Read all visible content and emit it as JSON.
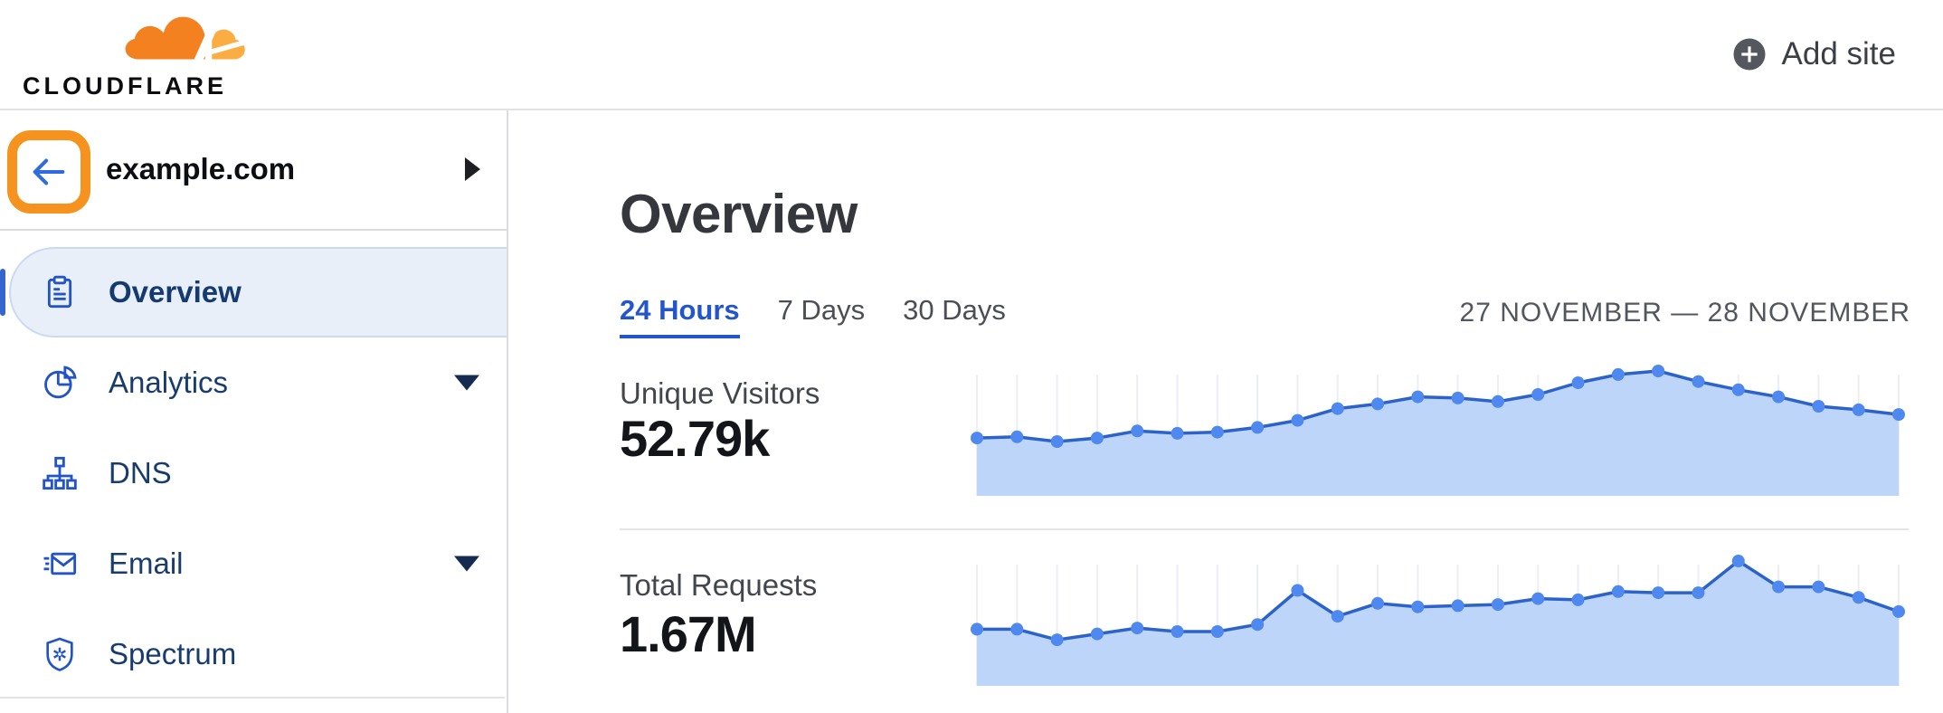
{
  "header": {
    "logo_text": "CLOUDFLARE",
    "logo_icon": "cloudflare-cloud-icon",
    "add_site_label": "Add site",
    "add_site_icon": "plus-circle-icon"
  },
  "sidebar": {
    "site": "example.com",
    "back_icon": "arrow-left-icon",
    "expand_icon": "chevron-right-icon",
    "annotation": {
      "type": "highlight-box",
      "target": "back-button",
      "color": "#f6921e"
    },
    "items": [
      {
        "label": "Overview",
        "icon": "clipboard",
        "selected": true,
        "expandable": false
      },
      {
        "label": "Analytics",
        "icon": "pie-chart",
        "selected": false,
        "expandable": true
      },
      {
        "label": "DNS",
        "icon": "network-nodes",
        "selected": false,
        "expandable": false
      },
      {
        "label": "Email",
        "icon": "email",
        "selected": false,
        "expandable": true
      },
      {
        "label": "Spectrum",
        "icon": "shield-spectrum",
        "selected": false,
        "expandable": false
      }
    ]
  },
  "main": {
    "title": "Overview",
    "tabs": [
      {
        "label": "24 Hours",
        "active": true
      },
      {
        "label": "7 Days",
        "active": false
      },
      {
        "label": "30 Days",
        "active": false
      }
    ],
    "date_range": "27 NOVEMBER — 28 NOVEMBER",
    "metrics": [
      {
        "label": "Unique Visitors",
        "value": "52.79k"
      },
      {
        "label": "Total Requests",
        "value": "1.67M"
      }
    ]
  },
  "chart_data": [
    {
      "type": "area",
      "title": "Unique Visitors",
      "summary_value": "52.79k",
      "x": "24 hourly points, 27 November — 28 November (axis unlabeled)",
      "x_count": 24,
      "ylabel": "relative value (% of peak, axis unlabeled)",
      "ylim": [
        0,
        100
      ],
      "grid": "vertical gridline at each point",
      "legend": "none",
      "values": [
        43,
        44,
        40,
        43,
        49,
        47,
        48,
        52,
        58,
        68,
        72,
        78,
        77,
        74,
        80,
        90,
        97,
        100,
        91,
        84,
        78,
        70,
        67,
        63
      ]
    },
    {
      "type": "area",
      "title": "Total Requests",
      "summary_value": "1.67M",
      "x": "24 hourly points, 27 November — 28 November (axis unlabeled)",
      "x_count": 24,
      "ylabel": "relative value (% of peak, axis unlabeled)",
      "ylim": [
        0,
        100
      ],
      "grid": "vertical gridline at each point",
      "legend": "none",
      "values": [
        42,
        42,
        33,
        38,
        43,
        40,
        40,
        46,
        75,
        53,
        64,
        61,
        62,
        63,
        68,
        67,
        74,
        73,
        73,
        100,
        78,
        78,
        69,
        57
      ]
    }
  ],
  "colors": {
    "brand_orange": "#f48120",
    "brand_orange_light": "#fbad41",
    "annotation_orange": "#f6921e",
    "link_blue": "#2456cb",
    "icon_blue": "#2254c5",
    "nav_text_navy": "#183c6e",
    "selected_item_bg": "#e9eff9",
    "chart_line": "#2c63ca",
    "chart_dot": "#4f88ef",
    "chart_fill": "#bed5fa",
    "chart_grid": "#ecedf5",
    "text_dark": "#131519",
    "text_gray": "#53565c",
    "divider": "#e4e4e6"
  }
}
